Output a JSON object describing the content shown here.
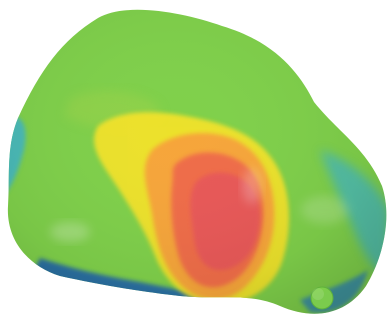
{
  "scene": {
    "subject": "3d-surface-heatmap",
    "background_color": "#ffffff",
    "colormap": {
      "low": "#1f5fb0",
      "mid_low": "#3fb6c9",
      "mid": "#7fd04a",
      "mid_high": "#f2e22a",
      "high_1": "#f7a23a",
      "high_2": "#ef6a4a",
      "peak": "#e85858"
    },
    "base_surface_color": "#7fd04a",
    "hotspot_level": "peak"
  }
}
